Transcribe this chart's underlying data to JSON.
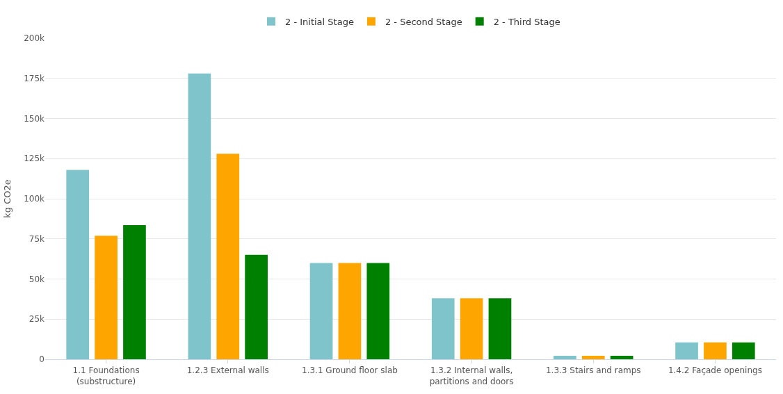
{
  "chart_data": {
    "type": "bar",
    "ylabel": "kg CO2e",
    "categories": [
      "1.1 Foundations\n(substructure)",
      "1.2.3 External walls",
      "1.3.1 Ground floor slab",
      "1.3.2 Internal walls,\npartitions and doors",
      "1.3.3 Stairs and ramps",
      "1.4.2 Façade openings"
    ],
    "series": [
      {
        "name": "2 - Initial Stage",
        "color": "#7fc3cb",
        "values": [
          118000,
          178000,
          60000,
          38000,
          2200,
          10500
        ]
      },
      {
        "name": "2 - Second Stage",
        "color": "#ffa500",
        "values": [
          77000,
          128000,
          60000,
          38000,
          2200,
          10500
        ]
      },
      {
        "name": "2 - Third Stage",
        "color": "#008000",
        "values": [
          83500,
          65000,
          60000,
          38000,
          2200,
          10500
        ]
      }
    ],
    "ylim": [
      0,
      200000
    ],
    "yticks": [
      {
        "value": 0,
        "label": "0"
      },
      {
        "value": 25000,
        "label": "25k"
      },
      {
        "value": 50000,
        "label": "50k"
      },
      {
        "value": 75000,
        "label": "75k"
      },
      {
        "value": 100000,
        "label": "100k"
      },
      {
        "value": 125000,
        "label": "125k"
      },
      {
        "value": 150000,
        "label": "150k"
      },
      {
        "value": 175000,
        "label": "175k"
      },
      {
        "value": 200000,
        "label": "200k"
      }
    ],
    "grid": "y",
    "legend": "top"
  }
}
